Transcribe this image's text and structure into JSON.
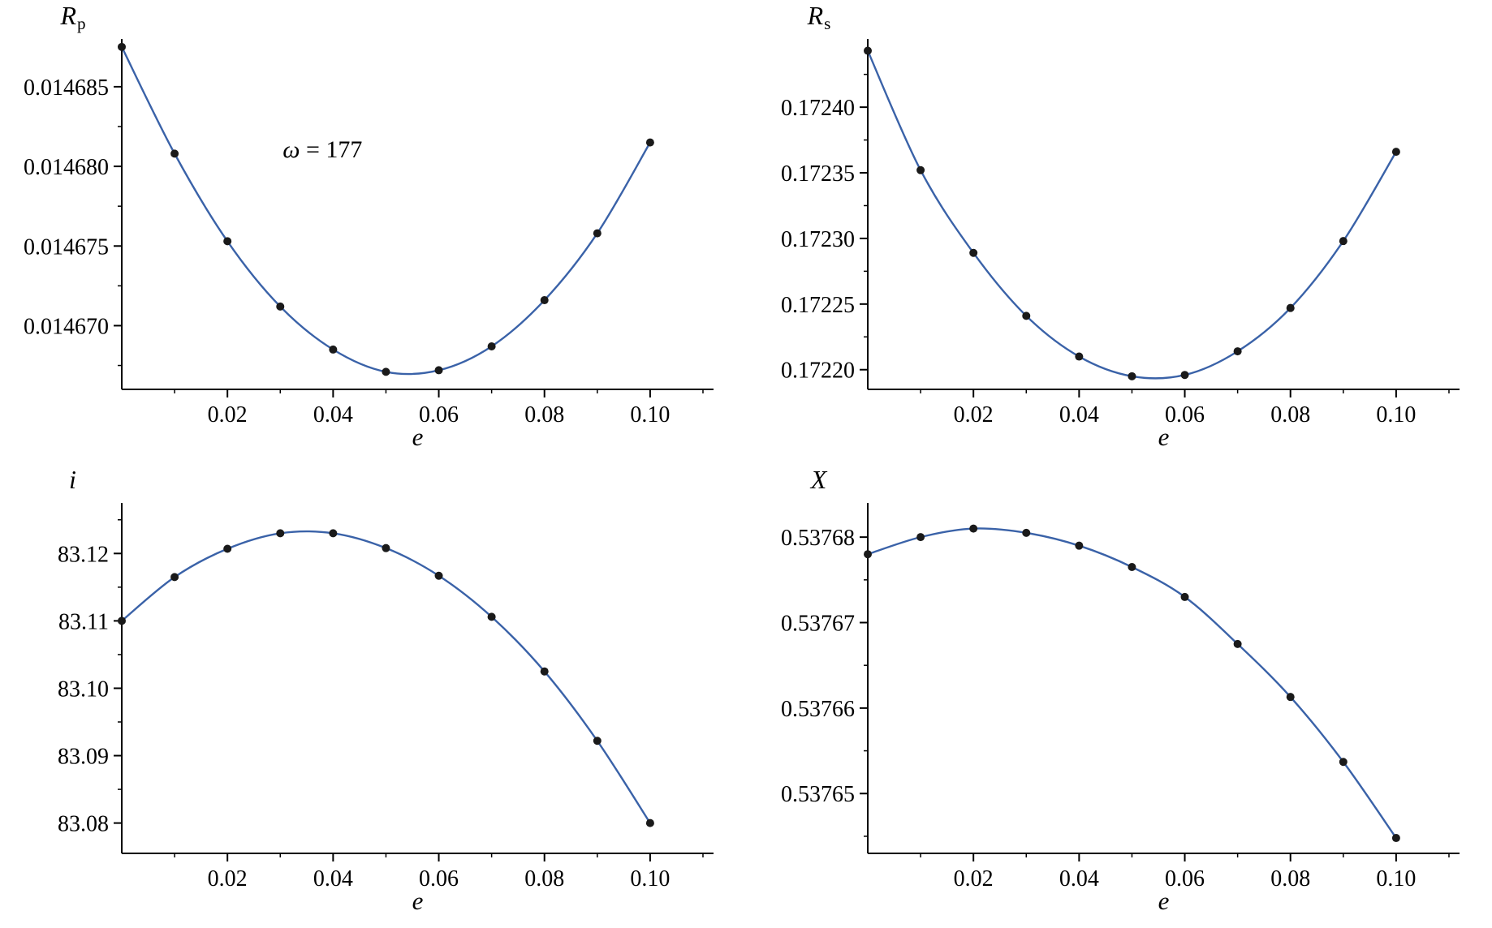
{
  "figure": {
    "background": "#ffffff",
    "line_color": "#3a62a8",
    "marker_color": "#1a1a1a",
    "axis_color": "#000000",
    "grid": false,
    "legend": false
  },
  "chart_data": [
    {
      "type": "line",
      "ylabel": "R_p",
      "ylabel_main": "R",
      "ylabel_sub": "p",
      "xlabel": "e",
      "annotation": {
        "symbol": "ω",
        "rest": " = 177",
        "x": 0.038,
        "y": 0.014681
      },
      "x": [
        0,
        0.01,
        0.02,
        0.03,
        0.04,
        0.05,
        0.06,
        0.07,
        0.08,
        0.09,
        0.1
      ],
      "y": [
        0.0146875,
        0.0146808,
        0.0146753,
        0.0146712,
        0.0146685,
        0.0146671,
        0.0146672,
        0.0146687,
        0.0146716,
        0.0146758,
        0.0146815
      ],
      "xlim": [
        0,
        0.112
      ],
      "ylim": [
        0.014666,
        0.014688
      ],
      "xticks": {
        "values": [
          0.02,
          0.04,
          0.06,
          0.08,
          0.1
        ],
        "labels": [
          "0.02",
          "0.04",
          "0.06",
          "0.08",
          "0.10"
        ]
      },
      "yticks": {
        "values": [
          0.01467,
          0.014675,
          0.01468,
          0.014685
        ],
        "labels": [
          "0.014670",
          "0.014675",
          "0.014680",
          "0.014685"
        ]
      },
      "xminor_step": 0.01
    },
    {
      "type": "line",
      "ylabel": "R_s",
      "ylabel_main": "R",
      "ylabel_sub": "s",
      "xlabel": "e",
      "x": [
        0,
        0.01,
        0.02,
        0.03,
        0.04,
        0.05,
        0.06,
        0.07,
        0.08,
        0.09,
        0.1
      ],
      "y": [
        0.172443,
        0.172352,
        0.172289,
        0.172241,
        0.17221,
        0.172195,
        0.172196,
        0.172214,
        0.172247,
        0.172298,
        0.172366
      ],
      "xlim": [
        0,
        0.112
      ],
      "ylim": [
        0.172185,
        0.172452
      ],
      "xticks": {
        "values": [
          0.02,
          0.04,
          0.06,
          0.08,
          0.1
        ],
        "labels": [
          "0.02",
          "0.04",
          "0.06",
          "0.08",
          "0.10"
        ]
      },
      "yticks": {
        "values": [
          0.1722,
          0.17225,
          0.1723,
          0.17235,
          0.1724
        ],
        "labels": [
          "0.17220",
          "0.17225",
          "0.17230",
          "0.17235",
          "0.17240"
        ]
      },
      "xminor_step": 0.01
    },
    {
      "type": "line",
      "ylabel": "i",
      "ylabel_main": "i",
      "ylabel_sub": "",
      "xlabel": "e",
      "x": [
        0,
        0.01,
        0.02,
        0.03,
        0.04,
        0.05,
        0.06,
        0.07,
        0.08,
        0.09,
        0.1
      ],
      "y": [
        83.11,
        83.1165,
        83.1207,
        83.123,
        83.123,
        83.1208,
        83.1167,
        83.1106,
        83.1025,
        83.0922,
        83.08
      ],
      "xlim": [
        0,
        0.112
      ],
      "ylim": [
        83.0755,
        83.1275
      ],
      "xticks": {
        "values": [
          0.02,
          0.04,
          0.06,
          0.08,
          0.1
        ],
        "labels": [
          "0.02",
          "0.04",
          "0.06",
          "0.08",
          "0.10"
        ]
      },
      "yticks": {
        "values": [
          83.08,
          83.09,
          83.1,
          83.11,
          83.12
        ],
        "labels": [
          "83.08",
          "83.09",
          "83.10",
          "83.11",
          "83.12"
        ]
      },
      "xminor_step": 0.01
    },
    {
      "type": "line",
      "ylabel": "X",
      "ylabel_main": "X",
      "ylabel_sub": "",
      "xlabel": "e",
      "x": [
        0,
        0.01,
        0.02,
        0.03,
        0.04,
        0.05,
        0.06,
        0.07,
        0.08,
        0.09,
        0.1
      ],
      "y": [
        0.537678,
        0.53768,
        0.537681,
        0.5376805,
        0.537679,
        0.5376765,
        0.537673,
        0.5376675,
        0.5376613,
        0.5376537,
        0.5376448
      ],
      "xlim": [
        0,
        0.112
      ],
      "ylim": [
        0.537643,
        0.537684
      ],
      "xticks": {
        "values": [
          0.02,
          0.04,
          0.06,
          0.08,
          0.1
        ],
        "labels": [
          "0.02",
          "0.04",
          "0.06",
          "0.08",
          "0.10"
        ]
      },
      "yticks": {
        "values": [
          0.53765,
          0.53766,
          0.53767,
          0.53768
        ],
        "labels": [
          "0.53765",
          "0.53766",
          "0.53767",
          "0.53768"
        ]
      },
      "xminor_step": 0.01
    }
  ]
}
